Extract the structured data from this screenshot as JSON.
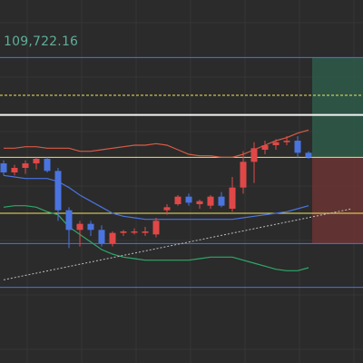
{
  "header": {
    "price_readout": "109,722.16"
  },
  "colors": {
    "background": "#2b2b2b",
    "grid": "#363636",
    "bull": "#4a74e0",
    "bear": "#e04848",
    "upper_band": "#d95b45",
    "middle_band": "#4a74e0",
    "lower_band": "#2ea86a",
    "level_blue": "#4a74e0",
    "level_yellow": "#f2e45a",
    "level_white": "#f4f4f4",
    "trendline": "#bfbfbf",
    "profit_zone": "#2e5b4a",
    "loss_zone": "#6b3434"
  },
  "chart_data": {
    "type": "candlestick",
    "title": "",
    "xlabel": "",
    "ylabel": "",
    "ylim": [
      109520,
      109760
    ],
    "grid": true,
    "candles": [
      {
        "o": 109652,
        "h": 109654,
        "l": 109644,
        "c": 109646
      },
      {
        "o": 109646,
        "h": 109651,
        "l": 109644,
        "c": 109649
      },
      {
        "o": 109649,
        "h": 109654,
        "l": 109645,
        "c": 109652
      },
      {
        "o": 109652,
        "h": 109656,
        "l": 109648,
        "c": 109655
      },
      {
        "o": 109655,
        "h": 109656,
        "l": 109646,
        "c": 109647
      },
      {
        "o": 109647,
        "h": 109649,
        "l": 109614,
        "c": 109621
      },
      {
        "o": 109621,
        "h": 109623,
        "l": 109596,
        "c": 109608
      },
      {
        "o": 109608,
        "h": 109614,
        "l": 109597,
        "c": 109612
      },
      {
        "o": 109612,
        "h": 109614,
        "l": 109604,
        "c": 109608
      },
      {
        "o": 109608,
        "h": 109611,
        "l": 109597,
        "c": 109599
      },
      {
        "o": 109599,
        "h": 109607,
        "l": 109597,
        "c": 109606
      },
      {
        "o": 109606,
        "h": 109608,
        "l": 109604,
        "c": 109607
      },
      {
        "o": 109607,
        "h": 109609,
        "l": 109605,
        "c": 109607
      },
      {
        "o": 109606,
        "h": 109610,
        "l": 109604,
        "c": 109607
      },
      {
        "o": 109605,
        "h": 109616,
        "l": 109603,
        "c": 109614
      },
      {
        "o": 109621,
        "h": 109625,
        "l": 109618,
        "c": 109623
      },
      {
        "o": 109625,
        "h": 109631,
        "l": 109624,
        "c": 109630
      },
      {
        "o": 109630,
        "h": 109632,
        "l": 109624,
        "c": 109626
      },
      {
        "o": 109625,
        "h": 109628,
        "l": 109622,
        "c": 109627
      },
      {
        "o": 109624,
        "h": 109631,
        "l": 109622,
        "c": 109630
      },
      {
        "o": 109630,
        "h": 109633,
        "l": 109623,
        "c": 109624
      },
      {
        "o": 109622,
        "h": 109643,
        "l": 109620,
        "c": 109636
      },
      {
        "o": 109636,
        "h": 109660,
        "l": 109632,
        "c": 109653
      },
      {
        "o": 109653,
        "h": 109666,
        "l": 109639,
        "c": 109662
      },
      {
        "o": 109661,
        "h": 109667,
        "l": 109658,
        "c": 109664
      },
      {
        "o": 109664,
        "h": 109668,
        "l": 109661,
        "c": 109666
      },
      {
        "o": 109666,
        "h": 109670,
        "l": 109664,
        "c": 109667
      },
      {
        "o": 109667,
        "h": 109670,
        "l": 109656,
        "c": 109659
      },
      {
        "o": 109659,
        "h": 109660,
        "l": 109655,
        "c": 109656
      }
    ],
    "bands": {
      "upper": [
        109662,
        109662,
        109663,
        109663,
        109662,
        109662,
        109662,
        109660,
        109660,
        109661,
        109662,
        109663,
        109664,
        109664,
        109665,
        109664,
        109661,
        109658,
        109657,
        109657,
        109656,
        109656,
        109658,
        109661,
        109664,
        109667,
        109669,
        109672,
        109674
      ],
      "middle": [
        109644,
        109643,
        109642,
        109642,
        109642,
        109640,
        109636,
        109631,
        109627,
        109623,
        109619,
        109617,
        109616,
        109615,
        109615,
        109615,
        109615,
        109615,
        109615,
        109615,
        109615,
        109615,
        109616,
        109617,
        109618,
        109619,
        109620,
        109622,
        109624
      ],
      "lower": [
        109623,
        109624,
        109624,
        109623,
        109620,
        109618,
        109610,
        109605,
        109600,
        109595,
        109592,
        109590,
        109589,
        109588,
        109588,
        109588,
        109588,
        109588,
        109589,
        109590,
        109590,
        109590,
        109588,
        109586,
        109584,
        109582,
        109581,
        109581,
        109583
      ]
    },
    "levels": [
      {
        "kind": "blue",
        "price": 109722
      },
      {
        "kind": "yellow",
        "price": 109697
      },
      {
        "kind": "white",
        "price": 109684
      },
      {
        "kind": "yellow",
        "price": 109656
      },
      {
        "kind": "yellow",
        "price": 109619
      },
      {
        "kind": "blue",
        "price": 109599
      },
      {
        "kind": "blue",
        "price": 109570
      }
    ],
    "trendline": {
      "from": {
        "i": 0,
        "price": 109575
      },
      "to": {
        "i": 32,
        "price": 109622
      }
    },
    "position": {
      "entry": 109656,
      "target": 109722,
      "stop": 109599,
      "start_index": 29
    }
  }
}
